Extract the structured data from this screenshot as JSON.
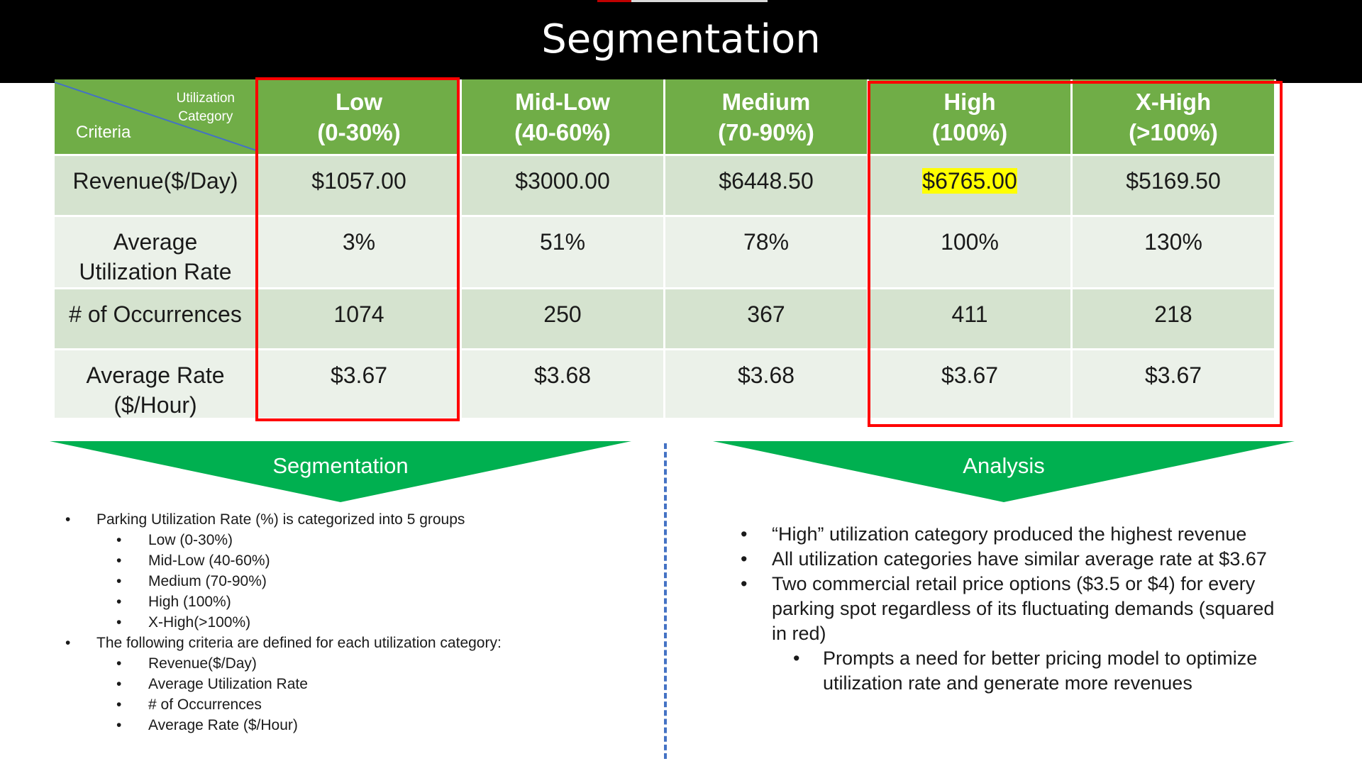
{
  "slide": {
    "title": "Segmentation"
  },
  "table": {
    "corner": {
      "category_line1": "Utilization",
      "category_line2": "Category",
      "criteria": "Criteria"
    },
    "columns": [
      {
        "name": "Low",
        "range": "(0-30%)"
      },
      {
        "name": "Mid-Low",
        "range": "(40-60%)"
      },
      {
        "name": "Medium",
        "range": "(70-90%)"
      },
      {
        "name": "High",
        "range": "(100%)"
      },
      {
        "name": "X-High",
        "range": "(>100%)"
      }
    ],
    "rows": [
      {
        "criteria": [
          "Revenue($/Day)"
        ],
        "values": [
          "$1057.00",
          "$3000.00",
          "$6448.50",
          "$6765.00",
          "$5169.50"
        ]
      },
      {
        "criteria": [
          "Average",
          "Utilization Rate"
        ],
        "values": [
          "3%",
          "51%",
          "78%",
          "100%",
          "130%"
        ]
      },
      {
        "criteria": [
          "# of Occurrences"
        ],
        "values": [
          "1074",
          "250",
          "367",
          "411",
          "218"
        ]
      },
      {
        "criteria": [
          "Average Rate",
          "($/Hour)"
        ],
        "values": [
          "$3.67",
          "$3.68",
          "$3.68",
          "$3.67",
          "$3.67"
        ]
      }
    ],
    "highlight_color": "#ffff00",
    "header_color": "#70ad47"
  },
  "banners": {
    "left": "Segmentation",
    "right": "Analysis",
    "color": "#00b050"
  },
  "segmentation_list": {
    "item1": "Parking Utilization Rate (%) is categorized into 5 groups",
    "groups": [
      "Low (0-30%)",
      "Mid-Low (40-60%)",
      "Medium (70-90%)",
      "High (100%)",
      "X-High(>100%)"
    ],
    "item2": "The following criteria are defined for each utilization category:",
    "criteria": [
      "Revenue($/Day)",
      "Average Utilization Rate",
      "# of Occurrences",
      "Average Rate ($/Hour)"
    ]
  },
  "analysis_list": {
    "items": [
      "“High” utilization category produced the highest revenue",
      "All utilization categories have similar average rate at $3.67",
      "Two commercial retail price options ($3.5 or $4) for every parking spot regardless of its fluctuating demands (squared in red)"
    ],
    "sub_item": "Prompts a need for better pricing model to optimize utilization rate and generate more revenues"
  },
  "bullet": "•"
}
